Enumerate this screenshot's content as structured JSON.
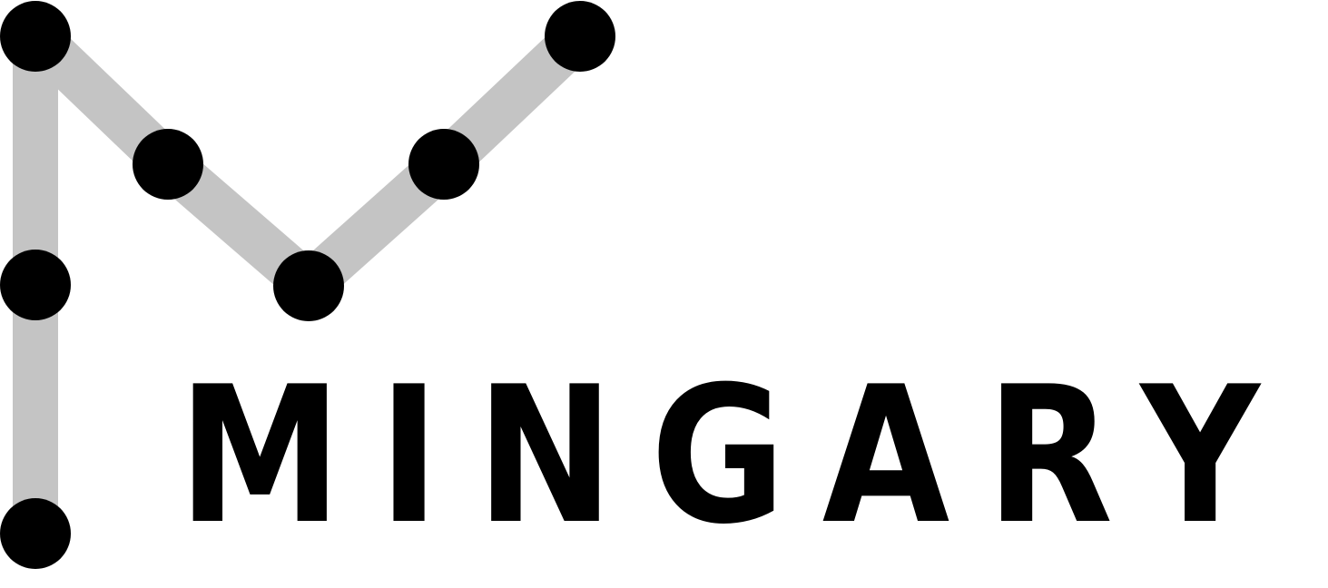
{
  "brand": {
    "name": "MINGARY",
    "colors": {
      "line": "#c4c4c4",
      "dot": "#000000",
      "text": "#000000"
    }
  }
}
